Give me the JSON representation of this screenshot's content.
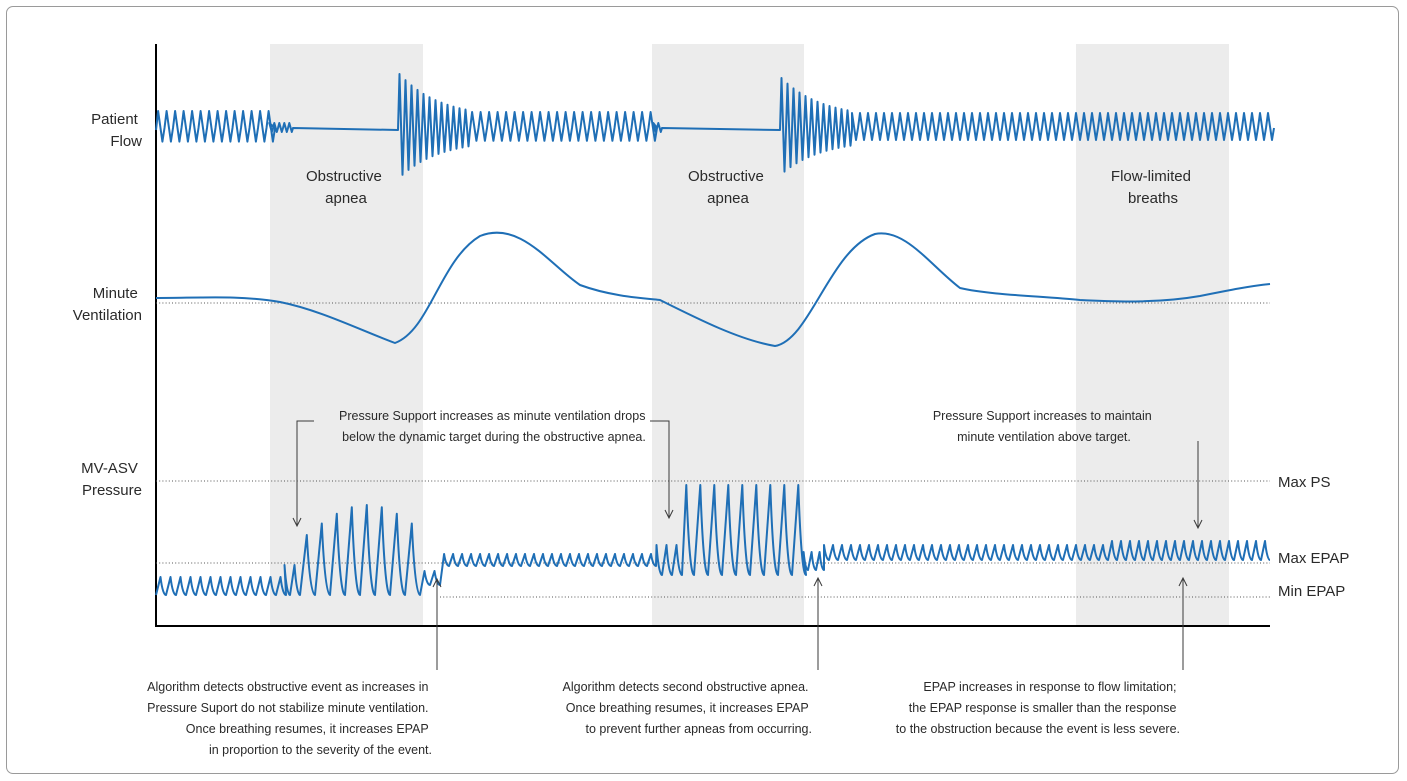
{
  "rows": {
    "patient_flow": [
      "Patient",
      "Flow"
    ],
    "minute_ventilation": [
      "Minute",
      "Ventilation"
    ],
    "pressure": [
      "MV-ASV",
      "Pressure"
    ]
  },
  "events": [
    {
      "lines": [
        "Obstructive",
        "apnea"
      ]
    },
    {
      "lines": [
        "Obstructive",
        "apnea"
      ]
    },
    {
      "lines": [
        "Flow-limited",
        "breaths"
      ]
    }
  ],
  "levels": {
    "max_ps": "Max PS",
    "max_epap": "Max EPAP",
    "min_epap": "Min EPAP"
  },
  "annotations_top": [
    {
      "lines": [
        "Pressure Support increases as minute ventilation drops",
        "below the dynamic target during the obstructive apnea."
      ]
    },
    {
      "lines": [
        "Pressure Support increases to maintain",
        "minute ventilation above target."
      ]
    }
  ],
  "annotations_bottom": [
    {
      "lines": [
        "Algorithm detects obstructive event as increases in",
        "Pressure Suport do not stabilize minute ventilation.",
        "Once breathing resumes, it increases EPAP",
        "in proportion to the severity of the event."
      ]
    },
    {
      "lines": [
        "Algorithm detects second obstructive apnea.",
        "Once breathing resumes, it increases EPAP",
        "to prevent further apneas from occurring."
      ]
    },
    {
      "lines": [
        "EPAP increases in response to flow limitation;",
        "the EPAP response is smaller than the response",
        "to the obstruction because the event is less severe."
      ]
    }
  ],
  "colors": {
    "trace": "#1f6fb6",
    "band": "#ececec"
  }
}
